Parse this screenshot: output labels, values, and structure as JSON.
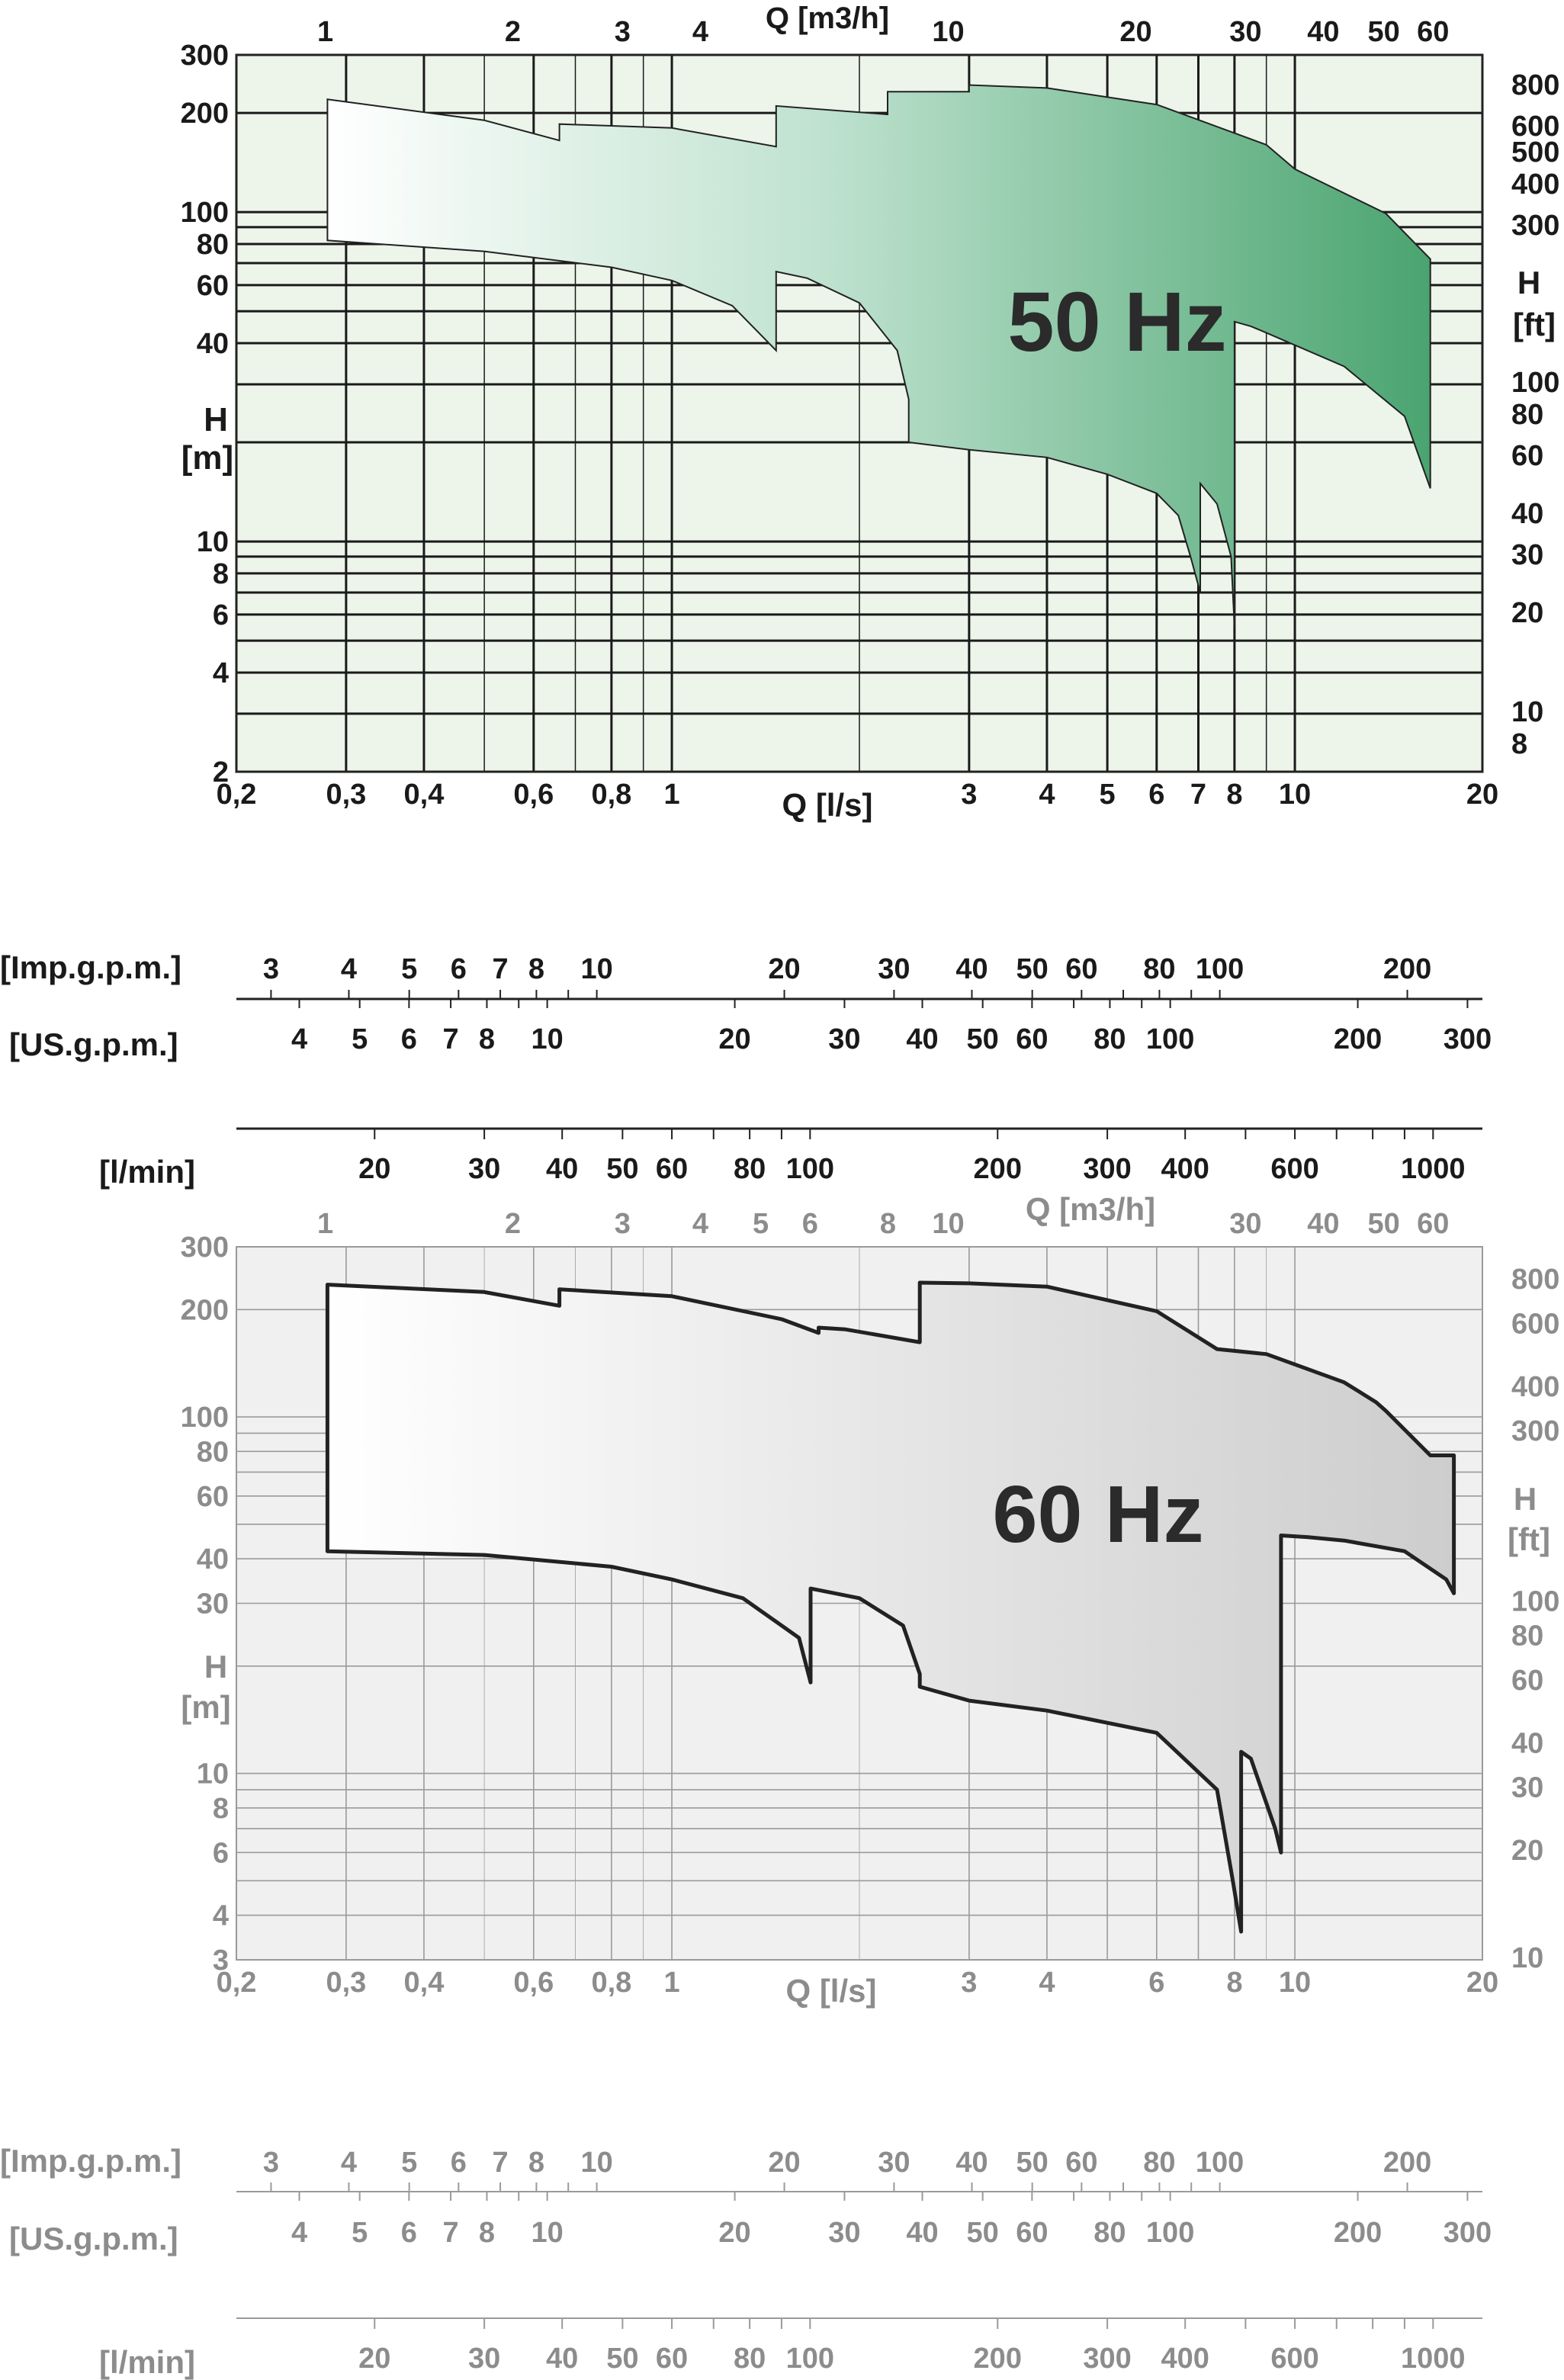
{
  "chart_data": [
    {
      "type": "area",
      "frequency_label": "50 Hz",
      "top_axis_label": "Q [m3/h]",
      "top_axis_ticks": [
        "1",
        "2",
        "3",
        "4",
        "10",
        "20",
        "30",
        "40",
        "50",
        "60"
      ],
      "bottom_axis_label": "Q [l/s]",
      "bottom_axis_ticks": [
        "0,2",
        "0,3",
        "0,4",
        "0,6",
        "0,8",
        "1",
        "3",
        "4",
        "5",
        "6",
        "7",
        "8",
        "10",
        "20"
      ],
      "left_axis_label": [
        "H",
        "[m]"
      ],
      "left_axis_ticks": [
        "2",
        "4",
        "6",
        "8",
        "10",
        "40",
        "60",
        "80",
        "100",
        "200",
        "300"
      ],
      "right_axis_label": [
        "H",
        "[ft]"
      ],
      "right_axis_ticks": [
        "8",
        "10",
        "20",
        "30",
        "40",
        "60",
        "80",
        "100",
        "300",
        "400",
        "500",
        "600",
        "800"
      ],
      "xscale": "log",
      "yscale": "log",
      "xlim": [
        0.2,
        20
      ],
      "ylim": [
        2,
        300
      ],
      "grid": true,
      "colors": {
        "plot_background": "#edf4ea",
        "fill_start": "#ffffff",
        "fill_end": "#4aa470",
        "curve": "#222222"
      },
      "upper_envelope": [
        [
          0.28,
          220
        ],
        [
          0.5,
          190
        ],
        [
          0.66,
          165
        ],
        [
          0.66,
          185
        ],
        [
          1.0,
          180
        ],
        [
          1.47,
          158
        ],
        [
          1.47,
          210
        ],
        [
          2.22,
          198
        ],
        [
          2.22,
          232
        ],
        [
          3.0,
          232
        ],
        [
          3.0,
          243
        ],
        [
          4.0,
          238
        ],
        [
          6.0,
          212
        ],
        [
          9.0,
          160
        ],
        [
          10.0,
          135
        ],
        [
          14.0,
          99
        ],
        [
          16.5,
          72
        ]
      ],
      "lower_envelope": [
        [
          16.5,
          14.5
        ],
        [
          15.0,
          24
        ],
        [
          12.0,
          34
        ],
        [
          9.0,
          43
        ],
        [
          8.5,
          45
        ],
        [
          8.0,
          46.5
        ],
        [
          8.0,
          5.5
        ],
        [
          7.9,
          9
        ],
        [
          7.5,
          13
        ],
        [
          7.05,
          15
        ],
        [
          7.05,
          7
        ],
        [
          6.8,
          9
        ],
        [
          6.5,
          12
        ],
        [
          6.0,
          14
        ],
        [
          5.0,
          16
        ],
        [
          4.0,
          18
        ],
        [
          3.0,
          19
        ],
        [
          2.4,
          20
        ],
        [
          2.4,
          27
        ],
        [
          2.3,
          38
        ],
        [
          2.0,
          53
        ],
        [
          1.65,
          63
        ],
        [
          1.47,
          66
        ],
        [
          1.47,
          38
        ],
        [
          1.25,
          52
        ],
        [
          1.0,
          62
        ],
        [
          0.8,
          68
        ],
        [
          0.5,
          76
        ],
        [
          0.28,
          82
        ]
      ]
    },
    {
      "type": "area",
      "frequency_label": "60 Hz",
      "top_axis_label": "Q [m3/h]",
      "top_axis_ticks": [
        "1",
        "2",
        "3",
        "4",
        "5",
        "6",
        "8",
        "10",
        "30",
        "40",
        "50",
        "60"
      ],
      "bottom_axis_label": "Q [l/s]",
      "bottom_axis_ticks": [
        "0,2",
        "0,3",
        "0,4",
        "0,6",
        "0,8",
        "1",
        "3",
        "4",
        "6",
        "8",
        "10",
        "20"
      ],
      "left_axis_label": [
        "H",
        "[m]"
      ],
      "left_axis_ticks": [
        "3",
        "4",
        "6",
        "8",
        "10",
        "30",
        "40",
        "60",
        "80",
        "100",
        "200",
        "300"
      ],
      "right_axis_label": [
        "H",
        "[ft]"
      ],
      "right_axis_ticks": [
        "10",
        "20",
        "30",
        "40",
        "60",
        "80",
        "100",
        "300",
        "400",
        "600",
        "800"
      ],
      "xscale": "log",
      "yscale": "log",
      "xlim": [
        0.2,
        20
      ],
      "ylim": [
        3,
        300
      ],
      "grid": true,
      "colors": {
        "plot_background": "#f0f0f0",
        "fill_start": "#ffffff",
        "fill_end": "#cfcfcf",
        "curve": "#222222"
      },
      "upper_envelope": [
        [
          0.28,
          235
        ],
        [
          0.5,
          224
        ],
        [
          0.66,
          205
        ],
        [
          0.66,
          228
        ],
        [
          1.0,
          218
        ],
        [
          1.5,
          188
        ],
        [
          1.72,
          172
        ],
        [
          1.72,
          178
        ],
        [
          1.9,
          176
        ],
        [
          2.5,
          162
        ],
        [
          2.5,
          238
        ],
        [
          3.0,
          237
        ],
        [
          4.0,
          232
        ],
        [
          6.0,
          198
        ],
        [
          7.5,
          155
        ],
        [
          9.0,
          150
        ],
        [
          12.0,
          125
        ],
        [
          13.5,
          110
        ],
        [
          14.0,
          104
        ],
        [
          16.5,
          78
        ],
        [
          18.0,
          78
        ]
      ],
      "lower_envelope": [
        [
          18.0,
          32
        ],
        [
          17.5,
          35
        ],
        [
          15.0,
          42
        ],
        [
          12.0,
          45
        ],
        [
          10.5,
          46
        ],
        [
          9.5,
          46.5
        ],
        [
          9.5,
          6
        ],
        [
          9.3,
          7
        ],
        [
          8.5,
          11
        ],
        [
          8.2,
          11.5
        ],
        [
          8.2,
          3.6
        ],
        [
          7.95,
          5
        ],
        [
          7.5,
          9
        ],
        [
          6.0,
          13
        ],
        [
          4.0,
          15
        ],
        [
          3.0,
          16
        ],
        [
          2.5,
          17.5
        ],
        [
          2.5,
          19
        ],
        [
          2.35,
          26
        ],
        [
          2.0,
          31
        ],
        [
          1.67,
          33
        ],
        [
          1.67,
          18
        ],
        [
          1.6,
          24
        ],
        [
          1.3,
          31
        ],
        [
          1.0,
          35
        ],
        [
          0.8,
          38
        ],
        [
          0.5,
          41
        ],
        [
          0.28,
          42
        ]
      ]
    }
  ],
  "scales_50": [
    {
      "label": "[Imp.g.p.m.]",
      "ticks": [
        "3",
        "4",
        "5",
        "6",
        "7",
        "8",
        "10",
        "20",
        "30",
        "40",
        "50",
        "60",
        "80",
        "100",
        "200"
      ]
    },
    {
      "label": "[US.g.p.m.]",
      "ticks": [
        "4",
        "5",
        "6",
        "7",
        "8",
        "10",
        "20",
        "30",
        "40",
        "50",
        "60",
        "80",
        "100",
        "200",
        "300"
      ]
    },
    {
      "label": "[l/min]",
      "ticks": [
        "20",
        "30",
        "40",
        "50",
        "60",
        "80",
        "100",
        "200",
        "300",
        "400",
        "600",
        "1000"
      ]
    }
  ],
  "scales_60": [
    {
      "label": "[Imp.g.p.m.]",
      "ticks": [
        "3",
        "4",
        "5",
        "6",
        "7",
        "8",
        "10",
        "20",
        "30",
        "40",
        "50",
        "60",
        "80",
        "100",
        "200"
      ]
    },
    {
      "label": "[US.g.p.m.]",
      "ticks": [
        "4",
        "5",
        "6",
        "7",
        "8",
        "10",
        "20",
        "30",
        "40",
        "50",
        "60",
        "80",
        "100",
        "200",
        "300"
      ]
    },
    {
      "label": "[l/min]",
      "ticks": [
        "20",
        "30",
        "40",
        "50",
        "60",
        "80",
        "100",
        "200",
        "300",
        "400",
        "600",
        "1000"
      ]
    }
  ]
}
